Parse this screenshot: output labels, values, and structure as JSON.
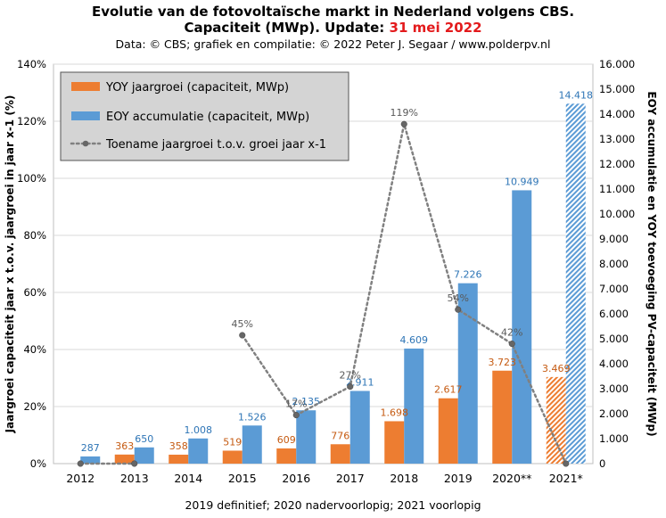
{
  "title": {
    "line1": "Evolutie  van de fotovoltaïsche  markt in Nederland volgens CBS.",
    "line2_prefix": "Capaciteit  (MWp). Update:",
    "line2_date": "31 mei 2022"
  },
  "credit": "Data: © CBS;  grafiek en compilatie:  © 2022 Peter J. Segaar / www.polderpv.nl",
  "footer": "2019  definitief; 2020 nadervoorlopig; 2021 voorlopig",
  "colors": {
    "yoy": "#ed7d31",
    "eoy": "#5b9bd5",
    "yoy_label": "#c55a11",
    "eoy_label": "#2e75b6",
    "line": "#808080",
    "marker": "#666666",
    "plot_bg": "#ffffff",
    "grid": "#d9d9d9",
    "legend_bg": "#d4d4d4"
  },
  "chart_data": {
    "type": "bar",
    "categories": [
      "2012",
      "2013",
      "2014",
      "2015",
      "2016",
      "2017",
      "2018",
      "2019",
      "2020**",
      "2021*"
    ],
    "series": [
      {
        "name": "YOY jaargroei (capaciteit, MWp)",
        "axis": "right",
        "values": [
          null,
          363,
          358,
          519,
          609,
          776,
          1698,
          2617,
          3723,
          3469
        ],
        "labels": [
          "",
          "363",
          "358",
          "519",
          "609",
          "776",
          "1.698",
          "2.617",
          "3.723",
          "3.469"
        ]
      },
      {
        "name": "EOY accumulatie (capaciteit, MWp)",
        "axis": "right",
        "values": [
          287,
          650,
          1008,
          1526,
          2135,
          2911,
          4609,
          7226,
          10949,
          14418
        ],
        "labels": [
          "287",
          "650",
          "1.008",
          "1.526",
          "2.135",
          "2.911",
          "4.609",
          "7.226",
          "10.949",
          "14.418"
        ]
      },
      {
        "name": "Toename jaargroei t.o.v. groei jaar x-1",
        "type": "line",
        "style": "dotted",
        "axis": "left",
        "values": [
          0,
          0,
          null,
          45,
          17,
          27,
          119,
          54,
          42,
          0
        ],
        "labels": [
          "",
          "",
          "",
          "45%",
          "17%",
          "27%",
          "119%",
          "54%",
          "42%",
          ""
        ]
      }
    ],
    "hatched_last_bars": true,
    "left_axis": {
      "label": "Jaargroei  capaciteit jaar x t.o.v. jaargroei in jaar x-1 (%)",
      "min": 0,
      "max": 140,
      "step": 20,
      "ticks": [
        "0%",
        "20%",
        "40%",
        "60%",
        "80%",
        "100%",
        "120%",
        "140%"
      ]
    },
    "right_axis": {
      "label": "EOY accumulatie en YOY toevoeging PV-capaciteit (MWp)",
      "min": 0,
      "max": 16000,
      "step": 1000,
      "ticks": [
        "0",
        "1.000",
        "2.000",
        "3.000",
        "4.000",
        "5.000",
        "6.000",
        "7.000",
        "8.000",
        "9.000",
        "10.000",
        "11.000",
        "12.000",
        "13.000",
        "14.000",
        "15.000",
        "16.000"
      ]
    },
    "legend": {
      "position": "top-left"
    },
    "grid": true
  }
}
